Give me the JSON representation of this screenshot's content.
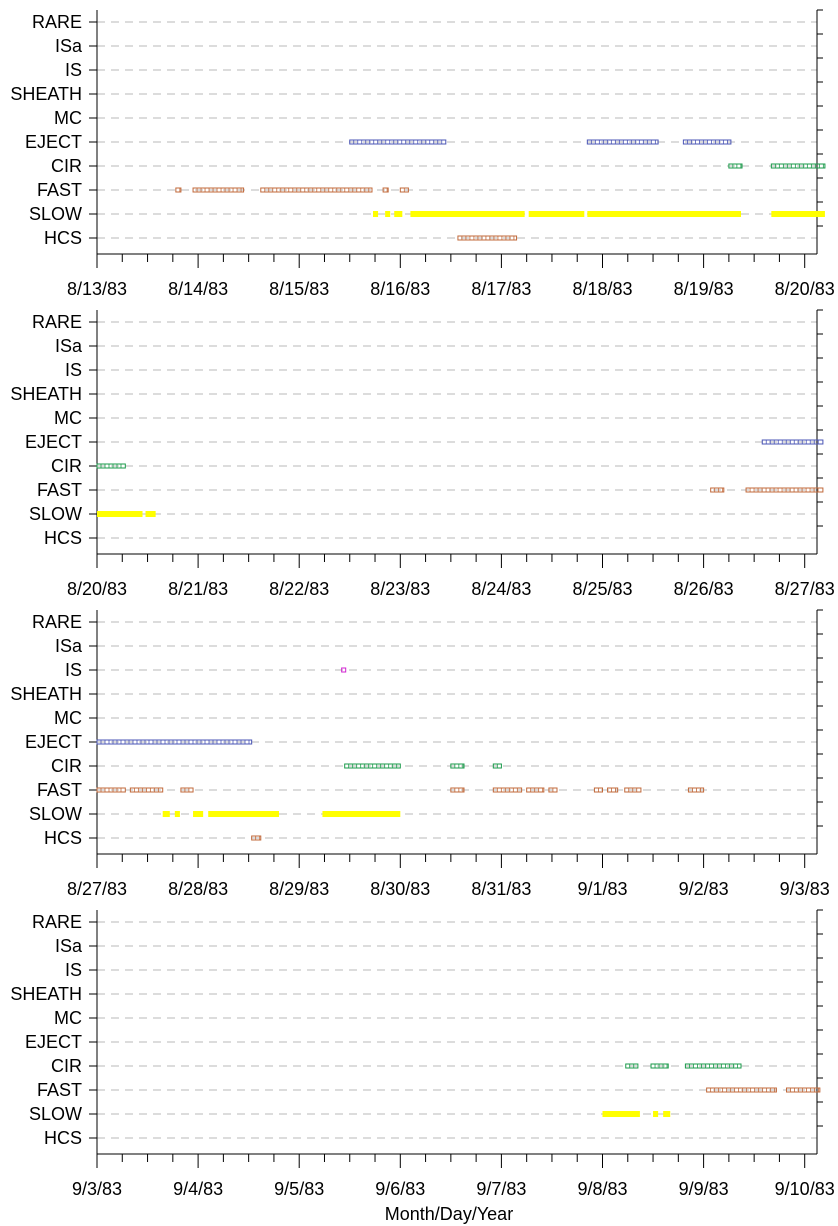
{
  "chart_data": {
    "type": "scatter",
    "xlabel": "Month/Day/Year",
    "categories": [
      "RARE",
      "ISa",
      "IS",
      "SHEATH",
      "MC",
      "EJECT",
      "CIR",
      "FAST",
      "SLOW",
      "HCS"
    ],
    "colors": {
      "EJECT": "#4a55b5",
      "CIR": "#1a9a4a",
      "FAST": "#c0683a",
      "SLOW": "#ffff00",
      "HCS": "#c0683a",
      "IS": "#d020d0"
    },
    "grid": true,
    "panels": [
      {
        "start": "1983-08-13",
        "tick_labels": [
          "8/13/83",
          "8/14/83",
          "8/15/83",
          "8/16/83",
          "8/17/83",
          "8/18/83",
          "8/19/83",
          "8/20/83"
        ],
        "intervals": [
          {
            "cat": "EJECT",
            "start": 2.5,
            "end": 3.45
          },
          {
            "cat": "EJECT",
            "start": 4.85,
            "end": 5.55
          },
          {
            "cat": "EJECT",
            "start": 5.8,
            "end": 6.27
          },
          {
            "cat": "CIR",
            "start": 6.25,
            "end": 6.38
          },
          {
            "cat": "CIR",
            "start": 6.67,
            "end": 7.2
          },
          {
            "cat": "FAST",
            "start": 0.78,
            "end": 0.83
          },
          {
            "cat": "FAST",
            "start": 0.95,
            "end": 1.45
          },
          {
            "cat": "FAST",
            "start": 1.62,
            "end": 2.72
          },
          {
            "cat": "FAST",
            "start": 2.83,
            "end": 2.88
          },
          {
            "cat": "FAST",
            "start": 3.0,
            "end": 3.08
          },
          {
            "cat": "SLOW",
            "start": 2.73,
            "end": 2.78
          },
          {
            "cat": "SLOW",
            "start": 2.85,
            "end": 2.9
          },
          {
            "cat": "SLOW",
            "start": 2.94,
            "end": 3.02
          },
          {
            "cat": "SLOW",
            "start": 3.1,
            "end": 4.23
          },
          {
            "cat": "SLOW",
            "start": 4.27,
            "end": 4.82
          },
          {
            "cat": "SLOW",
            "start": 4.85,
            "end": 6.37
          },
          {
            "cat": "SLOW",
            "start": 6.67,
            "end": 7.2
          },
          {
            "cat": "HCS",
            "start": 3.57,
            "end": 4.15
          }
        ]
      },
      {
        "start": "1983-08-20",
        "tick_labels": [
          "8/20/83",
          "8/21/83",
          "8/22/83",
          "8/23/83",
          "8/24/83",
          "8/25/83",
          "8/26/83",
          "8/27/83"
        ],
        "intervals": [
          {
            "cat": "EJECT",
            "start": 6.58,
            "end": 7.18
          },
          {
            "cat": "CIR",
            "start": 0.0,
            "end": 0.28
          },
          {
            "cat": "FAST",
            "start": 6.07,
            "end": 6.2
          },
          {
            "cat": "FAST",
            "start": 6.42,
            "end": 7.18
          },
          {
            "cat": "SLOW",
            "start": 0.0,
            "end": 0.45
          },
          {
            "cat": "SLOW",
            "start": 0.48,
            "end": 0.58
          }
        ]
      },
      {
        "start": "1983-08-27",
        "tick_labels": [
          "8/27/83",
          "8/28/83",
          "8/29/83",
          "8/30/83",
          "8/31/83",
          "9/1/83",
          "9/2/83",
          "9/3/83"
        ],
        "intervals": [
          {
            "cat": "IS",
            "start": 2.42,
            "end": 2.46
          },
          {
            "cat": "EJECT",
            "start": 0.0,
            "end": 1.53
          },
          {
            "cat": "CIR",
            "start": 2.45,
            "end": 3.0
          },
          {
            "cat": "CIR",
            "start": 3.5,
            "end": 3.63
          },
          {
            "cat": "CIR",
            "start": 3.92,
            "end": 4.0
          },
          {
            "cat": "FAST",
            "start": 0.0,
            "end": 0.28
          },
          {
            "cat": "FAST",
            "start": 0.33,
            "end": 0.65
          },
          {
            "cat": "FAST",
            "start": 0.83,
            "end": 0.95
          },
          {
            "cat": "FAST",
            "start": 3.5,
            "end": 3.63
          },
          {
            "cat": "FAST",
            "start": 3.92,
            "end": 4.2
          },
          {
            "cat": "FAST",
            "start": 4.25,
            "end": 4.42
          },
          {
            "cat": "FAST",
            "start": 4.47,
            "end": 4.55
          },
          {
            "cat": "FAST",
            "start": 4.92,
            "end": 5.0
          },
          {
            "cat": "FAST",
            "start": 5.05,
            "end": 5.15
          },
          {
            "cat": "FAST",
            "start": 5.22,
            "end": 5.38
          },
          {
            "cat": "FAST",
            "start": 5.85,
            "end": 6.0
          },
          {
            "cat": "SLOW",
            "start": 0.65,
            "end": 0.72
          },
          {
            "cat": "SLOW",
            "start": 0.77,
            "end": 0.82
          },
          {
            "cat": "SLOW",
            "start": 0.95,
            "end": 1.05
          },
          {
            "cat": "SLOW",
            "start": 1.1,
            "end": 1.8
          },
          {
            "cat": "SLOW",
            "start": 2.23,
            "end": 3.0
          },
          {
            "cat": "HCS",
            "start": 1.53,
            "end": 1.62
          }
        ]
      },
      {
        "start": "1983-09-03",
        "tick_labels": [
          "9/3/83",
          "9/4/83",
          "9/5/83",
          "9/6/83",
          "9/7/83",
          "9/8/83",
          "9/9/83",
          "9/10/83"
        ],
        "intervals": [
          {
            "cat": "CIR",
            "start": 5.23,
            "end": 5.35
          },
          {
            "cat": "CIR",
            "start": 5.48,
            "end": 5.65
          },
          {
            "cat": "CIR",
            "start": 5.82,
            "end": 6.37
          },
          {
            "cat": "FAST",
            "start": 6.03,
            "end": 6.72
          },
          {
            "cat": "FAST",
            "start": 6.82,
            "end": 7.15
          },
          {
            "cat": "SLOW",
            "start": 5.0,
            "end": 5.37
          },
          {
            "cat": "SLOW",
            "start": 5.5,
            "end": 5.55
          },
          {
            "cat": "SLOW",
            "start": 5.6,
            "end": 5.67
          }
        ]
      }
    ]
  }
}
